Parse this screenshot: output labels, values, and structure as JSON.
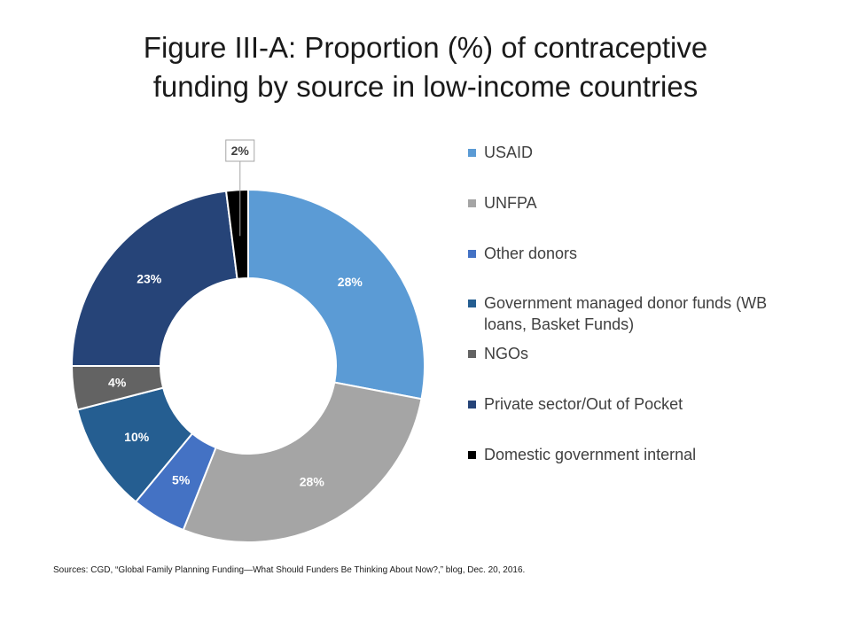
{
  "title_line1": "Figure III-A: Proportion (%) of contraceptive",
  "title_line2": "funding by source in low-income countries",
  "source_note": "Sources: CGD, “Global Family Planning Funding—What Should Funders Be Thinking About Now?,” blog, Dec. 20, 2016.",
  "chart_data": {
    "type": "pie",
    "variant": "donut",
    "title": "Figure III-A: Proportion (%) of contraceptive funding by source in low-income countries",
    "legend_position": "right",
    "slices": [
      {
        "label": "USAID",
        "value": 28,
        "data_label": "28%",
        "color": "#5b9bd5"
      },
      {
        "label": "UNFPA",
        "value": 28,
        "data_label": "28%",
        "color": "#a5a5a5"
      },
      {
        "label": "Other donors",
        "value": 5,
        "data_label": "5%",
        "color": "#4472c4"
      },
      {
        "label": "Government managed donor funds (WB loans, Basket Funds)",
        "value": 10,
        "data_label": "10%",
        "color": "#255e91"
      },
      {
        "label": "NGOs",
        "value": 4,
        "data_label": "4%",
        "color": "#636363"
      },
      {
        "label": "Private sector/Out of Pocket",
        "value": 23,
        "data_label": "23%",
        "color": "#264478"
      },
      {
        "label": "Domestic government internal",
        "value": 2,
        "data_label": "2%",
        "color": "#000000"
      }
    ]
  }
}
